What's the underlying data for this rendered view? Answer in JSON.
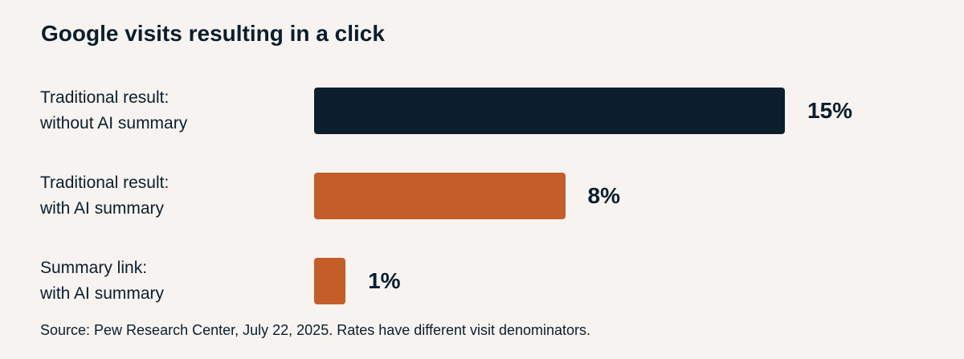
{
  "chart_data": {
    "type": "bar",
    "orientation": "horizontal",
    "title": "Google visits resulting in a click",
    "categories": [
      [
        "Traditional result:",
        "without AI summary"
      ],
      [
        "Traditional result:",
        "with AI summary"
      ],
      [
        "Summary link:",
        "with AI summary"
      ]
    ],
    "values": [
      15,
      8,
      1
    ],
    "value_labels": [
      "15%",
      "8%",
      "1%"
    ],
    "unit": "%",
    "colors": [
      "#0a1e2c",
      "#c45d28",
      "#c45d28"
    ],
    "xlim": [
      0,
      15
    ],
    "grid": false,
    "legend": "none",
    "source": "Source: Pew Research Center, July 22, 2025. Rates have different visit denominators."
  }
}
